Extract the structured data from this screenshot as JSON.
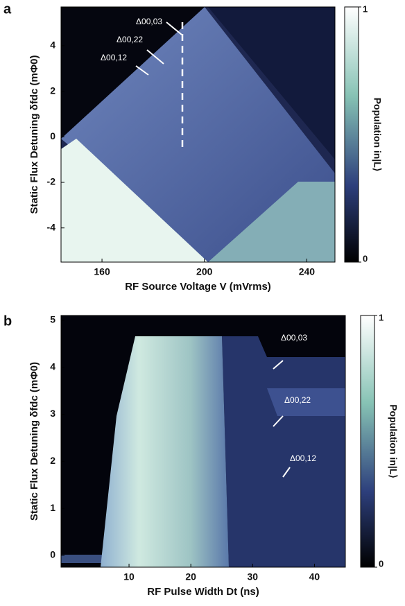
{
  "chart_data": [
    {
      "type": "heatmap",
      "panel": "a",
      "xlabel": "RF Source Voltage V (mVrms)",
      "ylabel": "Static Flux Detuning δfdc (mΦ0)",
      "xlim": [
        144,
        251
      ],
      "xticks": [
        160,
        200,
        240
      ],
      "ylim": [
        -5.5,
        5.7
      ],
      "yticks": [
        -4,
        -2,
        0,
        2,
        4
      ],
      "colorbar_label": "Population in|L⟩",
      "colorbar_lim": [
        0,
        1
      ],
      "colorbar_ticks": [
        0,
        1
      ],
      "annotations": [
        "Δ00,03",
        "Δ00,22",
        "Δ00,12"
      ]
    },
    {
      "type": "heatmap",
      "panel": "b",
      "xlabel": "RF Pulse Width Dt (ns)",
      "ylabel": "Static Flux Detuning δfdc (mΦ0)",
      "xlim": [
        -1,
        45
      ],
      "xticks": [
        10,
        20,
        30,
        40
      ],
      "ylim": [
        -0.25,
        5.1
      ],
      "yticks": [
        0,
        1,
        2,
        3,
        4,
        5
      ],
      "colorbar_label": "Population in|L⟩",
      "colorbar_lim": [
        0,
        1
      ],
      "colorbar_ticks": [
        0,
        1
      ],
      "annotations": [
        "Δ00,03",
        "Δ00,22",
        "Δ00,12"
      ]
    }
  ]
}
